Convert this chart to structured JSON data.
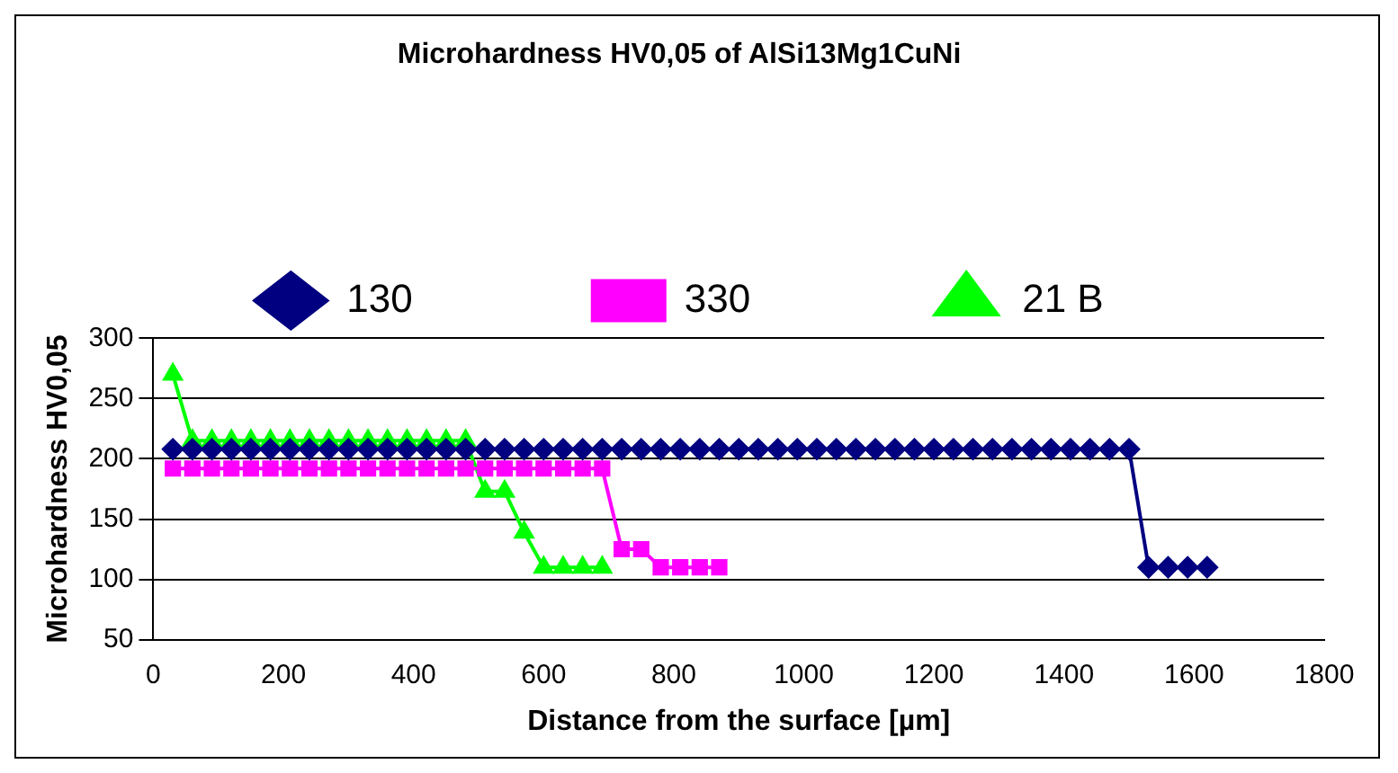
{
  "chart_data": {
    "type": "line",
    "title": "Microhardness HV0,05 of AlSi13Mg1CuNi",
    "xlabel": "Distance from the surface [µm]",
    "ylabel": "Microhardness HV0,05",
    "xlim": [
      0,
      1800
    ],
    "xticks": [
      0,
      200,
      400,
      600,
      800,
      1000,
      1200,
      1400,
      1600,
      1800
    ],
    "ylim": [
      50,
      300
    ],
    "yticks": [
      50,
      100,
      150,
      200,
      250,
      300
    ],
    "grid": "y",
    "legend": "top",
    "line_style": "solid",
    "series": [
      {
        "name": "130",
        "color": "#000080",
        "marker": "diamond",
        "x": [
          30,
          60,
          90,
          120,
          150,
          180,
          210,
          240,
          270,
          300,
          330,
          360,
          390,
          420,
          450,
          480,
          510,
          540,
          570,
          600,
          630,
          660,
          690,
          720,
          750,
          780,
          810,
          840,
          870,
          900,
          930,
          960,
          990,
          1020,
          1050,
          1080,
          1110,
          1140,
          1170,
          1200,
          1230,
          1260,
          1290,
          1320,
          1350,
          1380,
          1410,
          1440,
          1470,
          1500,
          1530,
          1560,
          1590,
          1620
        ],
        "values": [
          208,
          208,
          208,
          208,
          208,
          208,
          208,
          208,
          208,
          208,
          208,
          208,
          208,
          208,
          208,
          208,
          208,
          208,
          208,
          208,
          208,
          208,
          208,
          208,
          208,
          208,
          208,
          208,
          208,
          208,
          208,
          208,
          208,
          208,
          208,
          208,
          208,
          208,
          208,
          208,
          208,
          208,
          208,
          208,
          208,
          208,
          208,
          208,
          208,
          208,
          110,
          110,
          110,
          110
        ]
      },
      {
        "name": "330",
        "color": "#ff00ff",
        "marker": "square",
        "x": [
          30,
          60,
          90,
          120,
          150,
          180,
          210,
          240,
          270,
          300,
          330,
          360,
          390,
          420,
          450,
          480,
          510,
          540,
          570,
          600,
          630,
          660,
          690,
          720,
          750,
          780,
          810,
          840,
          870
        ],
        "values": [
          192,
          192,
          192,
          192,
          192,
          192,
          192,
          192,
          192,
          192,
          192,
          192,
          192,
          192,
          192,
          192,
          192,
          192,
          192,
          192,
          192,
          192,
          192,
          125,
          125,
          110,
          110,
          110,
          110
        ]
      },
      {
        "name": "21 B",
        "color": "#00ff00",
        "marker": "triangle",
        "x": [
          30,
          60,
          90,
          120,
          150,
          180,
          210,
          240,
          270,
          300,
          330,
          360,
          390,
          420,
          450,
          480,
          510,
          540,
          570,
          600,
          630,
          660,
          690
        ],
        "values": [
          270,
          215,
          215,
          215,
          215,
          215,
          215,
          215,
          215,
          215,
          215,
          215,
          215,
          215,
          215,
          215,
          173,
          173,
          139,
          110,
          110,
          110,
          110
        ]
      }
    ]
  }
}
